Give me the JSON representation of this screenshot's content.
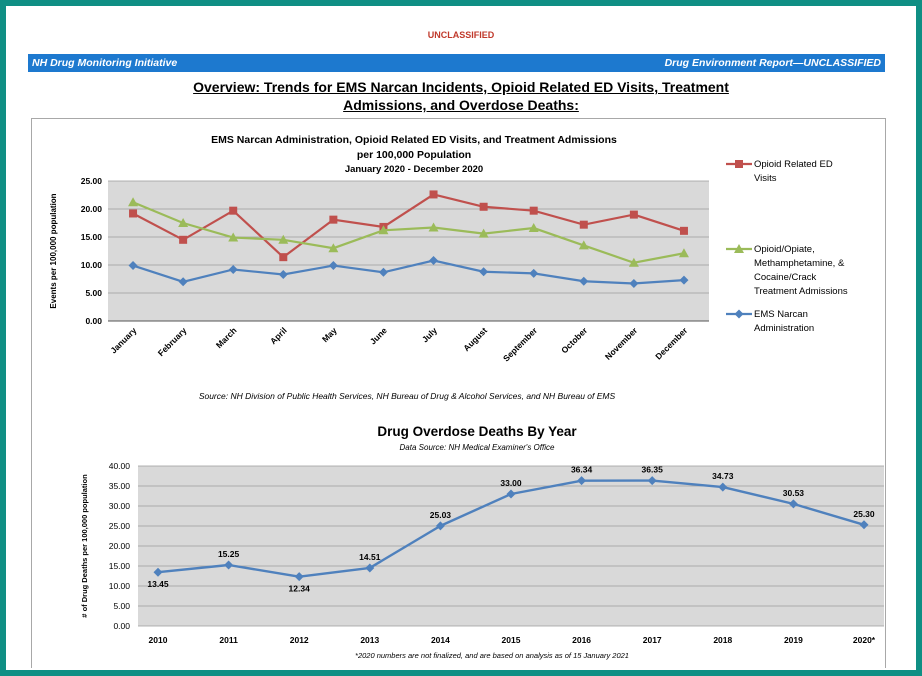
{
  "header": {
    "classification": "UNCLASSIFIED",
    "banner_left": "NH Drug Monitoring Initiative",
    "banner_right": "Drug Environment Report—UNCLASSIFIED",
    "overview_line1": "Overview: Trends for EMS Narcan Incidents, Opioid Related ED Visits, Treatment",
    "overview_line2": "Admissions, and Overdose Deaths:"
  },
  "colors": {
    "frame": "#0f8f84",
    "banner": "#1d79cf",
    "plot_bg": "#d9d9d9",
    "series_ed": "#c0504d",
    "series_treat": "#9bbb59",
    "series_narcan": "#4f81bd"
  },
  "chart_data": [
    {
      "type": "line",
      "title_line1": "EMS Narcan Administration, Opioid Related ED Visits, and Treatment Admissions",
      "title_line2": "per 100,000 Population",
      "title_line3": "January 2020 - December 2020",
      "ylabel": "Events per 100,000 population",
      "ylim": [
        0,
        25
      ],
      "y_ticks": [
        "0.00",
        "5.00",
        "10.00",
        "15.00",
        "20.00",
        "25.00"
      ],
      "grid": true,
      "legend_position": "right",
      "categories": [
        "January",
        "February",
        "March",
        "April",
        "May",
        "June",
        "July",
        "August",
        "September",
        "October",
        "November",
        "December"
      ],
      "series": [
        {
          "name_lines": [
            "Opioid Related ED",
            "Visits"
          ],
          "marker": "square",
          "values": [
            19.2,
            14.5,
            19.7,
            11.4,
            18.1,
            16.8,
            22.6,
            20.4,
            19.7,
            17.2,
            19.0,
            16.1
          ]
        },
        {
          "name_lines": [
            "Opioid/Opiate,",
            "Methamphetamine, &",
            "Cocaine/Crack",
            "Treatment Admissions"
          ],
          "marker": "triangle",
          "values": [
            21.2,
            17.5,
            14.9,
            14.5,
            13.0,
            16.2,
            16.7,
            15.6,
            16.6,
            13.5,
            10.4,
            12.1
          ]
        },
        {
          "name_lines": [
            "EMS Narcan",
            "Administration"
          ],
          "marker": "diamond",
          "values": [
            9.9,
            7.0,
            9.2,
            8.3,
            9.9,
            8.7,
            10.8,
            8.8,
            8.5,
            7.1,
            6.7,
            7.3
          ]
        }
      ],
      "source": "Source: NH Division of Public Health Services, NH Bureau of Drug & Alcohol Services, and NH Bureau of EMS"
    },
    {
      "type": "line",
      "title": "Drug Overdose Deaths By Year",
      "subtitle": "Data Source: NH Medical Examiner's Office",
      "ylabel": "# of Drug Deaths per 100,000 population",
      "ylim": [
        0,
        40
      ],
      "y_ticks": [
        "0.00",
        "5.00",
        "10.00",
        "15.00",
        "20.00",
        "25.00",
        "30.00",
        "35.00",
        "40.00"
      ],
      "grid": true,
      "categories": [
        "2010",
        "2011",
        "2012",
        "2013",
        "2014",
        "2015",
        "2016",
        "2017",
        "2018",
        "2019",
        "2020*"
      ],
      "values": [
        13.45,
        15.25,
        12.34,
        14.51,
        25.03,
        33.0,
        36.34,
        36.35,
        34.73,
        30.53,
        25.3
      ],
      "data_labels": [
        "13.45",
        "15.25",
        "12.34",
        "14.51",
        "25.03",
        "33.00",
        "36.34",
        "36.35",
        "34.73",
        "30.53",
        "25.30"
      ],
      "footnote": "*2020 numbers are not finalized, and are based on analysis as of 15 January 2021"
    }
  ]
}
